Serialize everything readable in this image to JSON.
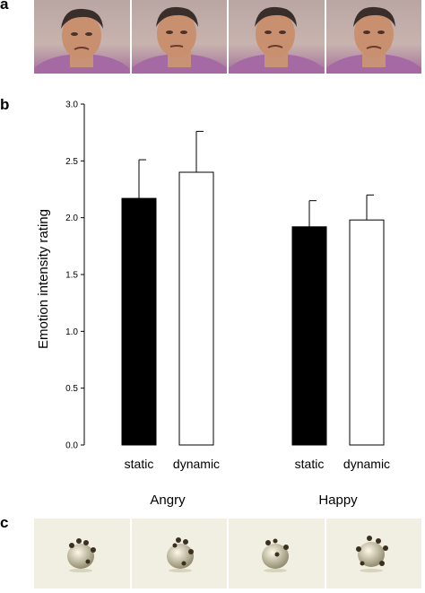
{
  "panel_labels": {
    "a": "a",
    "b": "b",
    "c": "c"
  },
  "photos": [
    {
      "name": "face-frame-1"
    },
    {
      "name": "face-frame-2"
    },
    {
      "name": "face-frame-3"
    },
    {
      "name": "face-frame-4"
    }
  ],
  "blobs": [
    {
      "name": "abstract-shape-frame-1"
    },
    {
      "name": "abstract-shape-frame-2"
    },
    {
      "name": "abstract-shape-frame-3"
    },
    {
      "name": "abstract-shape-frame-4"
    }
  ],
  "colors": {
    "static_fill": "#000000",
    "dynamic_fill": "#ffffff",
    "bar_stroke": "#000000"
  },
  "chart_data": {
    "type": "bar",
    "title": "",
    "xlabel": "",
    "ylabel": "Emotion intensity rating",
    "ylim": [
      0.0,
      3.0
    ],
    "yticks": [
      "0.0",
      "0.5",
      "1.0",
      "1.5",
      "2.0",
      "2.5",
      "3.0"
    ],
    "ytick_values": [
      0.0,
      0.5,
      1.0,
      1.5,
      2.0,
      2.5,
      3.0
    ],
    "groups": [
      "Angry",
      "Happy"
    ],
    "conditions": [
      "static",
      "dynamic"
    ],
    "series": [
      {
        "name": "static",
        "values": [
          2.17,
          1.92
        ],
        "error": [
          0.34,
          0.23
        ]
      },
      {
        "name": "dynamic",
        "values": [
          2.4,
          1.98
        ],
        "error": [
          0.36,
          0.22
        ]
      }
    ],
    "grid": false,
    "legend": "none"
  }
}
